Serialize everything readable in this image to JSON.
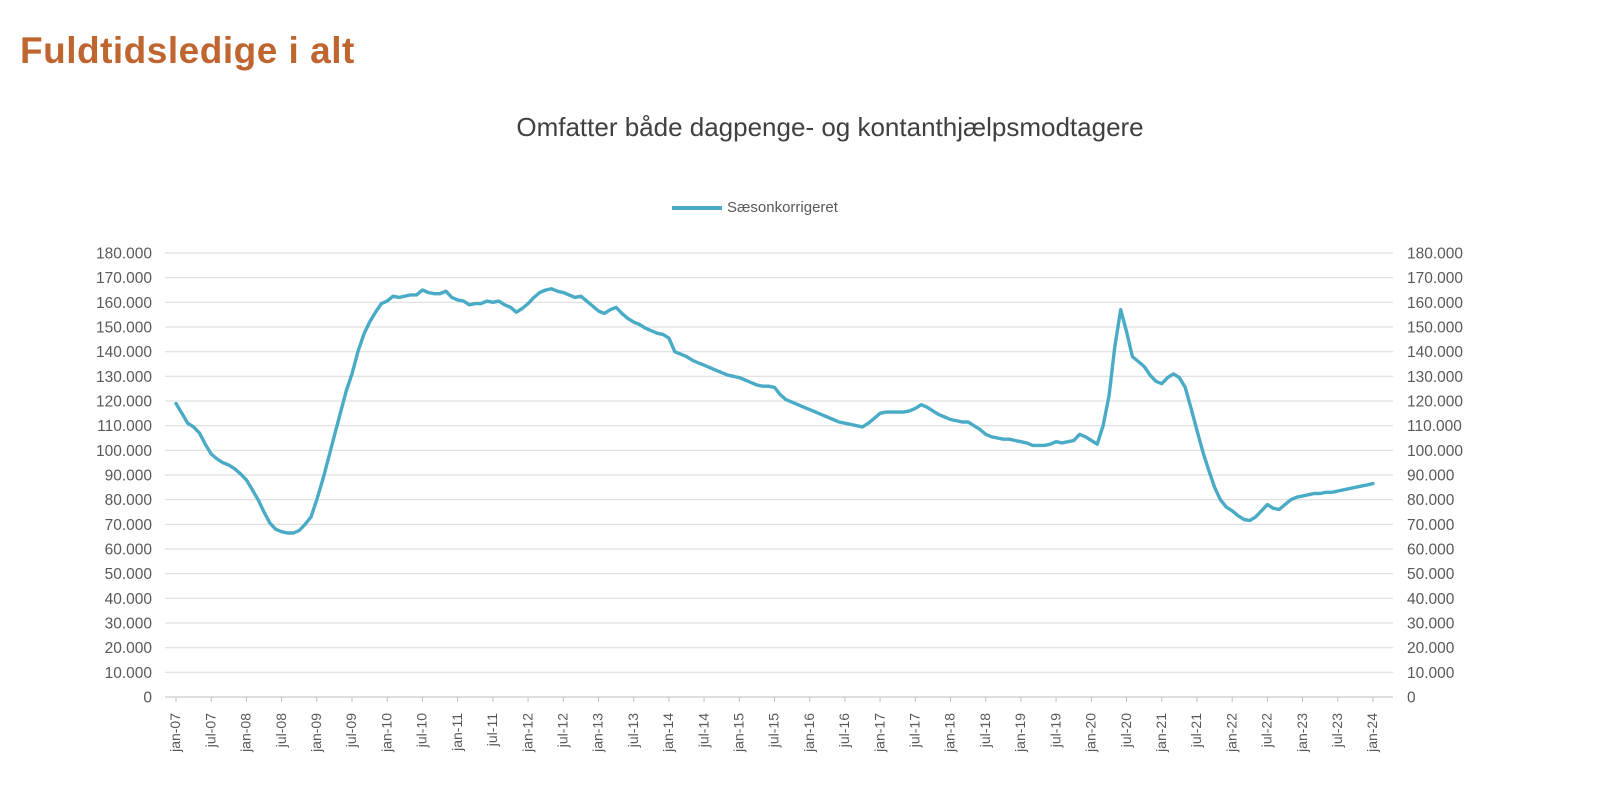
{
  "page_title": "Fuldtidsledige i alt",
  "colors": {
    "title_accent": "#BF6530",
    "subtitle_text": "#404040",
    "axis_text": "#595959",
    "gridline": "#D9D9D9",
    "axis_line": "#BFBFBF",
    "series_line": "#4AABC6",
    "background": "#FFFFFF"
  },
  "chart_data": {
    "type": "line",
    "title": "Omfatter både dagpenge- og kontanthjælpsmodtagere",
    "legend_position": "top-center",
    "y_axis_sides": [
      "left",
      "right"
    ],
    "grid": true,
    "xlabel": "",
    "ylabel": "",
    "ylim": [
      0,
      180000
    ],
    "y_tick_values": [
      0,
      10000,
      20000,
      30000,
      40000,
      50000,
      60000,
      70000,
      80000,
      90000,
      100000,
      110000,
      120000,
      130000,
      140000,
      150000,
      160000,
      170000,
      180000
    ],
    "y_tick_labels": [
      "0",
      "10.000",
      "20.000",
      "30.000",
      "40.000",
      "50.000",
      "60.000",
      "70.000",
      "80.000",
      "90.000",
      "100.000",
      "110.000",
      "120.000",
      "130.000",
      "140.000",
      "150.000",
      "160.000",
      "170.000",
      "180.000"
    ],
    "x_ticks_every_n_months": 6,
    "x_tick_labels": [
      "jan-07",
      "jul-07",
      "jan-08",
      "jul-08",
      "jan-09",
      "jul-09",
      "jan-10",
      "jul-10",
      "jan-11",
      "jul-11",
      "jan-12",
      "jul-12",
      "jan-13",
      "jul-13",
      "jan-14",
      "jul-14",
      "jan-15",
      "jul-15",
      "jan-16",
      "jul-16",
      "jan-17",
      "jul-17",
      "jan-18",
      "jul-18",
      "jan-19",
      "jul-19",
      "jan-20",
      "jul-20",
      "jan-21",
      "jul-21",
      "jan-22",
      "jul-22",
      "jan-23",
      "jul-23",
      "jan-24"
    ],
    "series": [
      {
        "name": "Sæsonkorrigeret",
        "color": "#4AABC6",
        "frequency": "monthly",
        "x_start": "jan-07",
        "x_end": "jan-24",
        "values": [
          119000,
          115000,
          111000,
          109500,
          107000,
          102500,
          98500,
          96500,
          95000,
          94000,
          92500,
          90500,
          88000,
          84000,
          80000,
          75000,
          70500,
          68000,
          67000,
          66500,
          66500,
          67500,
          70000,
          73000,
          80000,
          88000,
          97000,
          106000,
          115000,
          124000,
          131000,
          140000,
          147000,
          152000,
          156000,
          159500,
          160500,
          162500,
          162000,
          162500,
          163000,
          163000,
          165000,
          164000,
          163500,
          163500,
          164500,
          162000,
          161000,
          160500,
          159000,
          159500,
          159500,
          160500,
          160000,
          160500,
          159000,
          158000,
          156000,
          157500,
          159500,
          162000,
          164000,
          165000,
          165500,
          164500,
          164000,
          163000,
          162000,
          162500,
          160500,
          158500,
          156500,
          155500,
          157000,
          158000,
          155500,
          153500,
          152000,
          151000,
          149500,
          148500,
          147500,
          147000,
          145500,
          140000,
          139000,
          138000,
          136500,
          135500,
          134500,
          133500,
          132500,
          131500,
          130500,
          130000,
          129500,
          128500,
          127500,
          126500,
          126000,
          126000,
          125500,
          122500,
          120500,
          119500,
          118500,
          117500,
          116500,
          115500,
          114500,
          113500,
          112500,
          111500,
          111000,
          110500,
          110000,
          109500,
          111000,
          113000,
          115000,
          115500,
          115500,
          115500,
          115500,
          116000,
          117000,
          118500,
          117500,
          116000,
          114500,
          113500,
          112500,
          112000,
          111500,
          111500,
          110000,
          108500,
          106500,
          105500,
          105000,
          104500,
          104500,
          104000,
          103500,
          103000,
          102000,
          102000,
          102000,
          102500,
          103500,
          103000,
          103500,
          104000,
          106500,
          105500,
          104000,
          102500,
          110000,
          122000,
          142000,
          157000,
          148000,
          138000,
          136000,
          134000,
          130500,
          128000,
          127000,
          129500,
          131000,
          129500,
          125500,
          117000,
          108000,
          99500,
          92000,
          85000,
          80000,
          77000,
          75500,
          73500,
          72000,
          71500,
          73000,
          75500,
          78000,
          76500,
          76000,
          78000,
          80000,
          81000,
          81500,
          82000,
          82500,
          82500,
          83000,
          83000,
          83500,
          84000,
          84500,
          85000,
          85500,
          86000,
          86500
        ]
      }
    ]
  }
}
